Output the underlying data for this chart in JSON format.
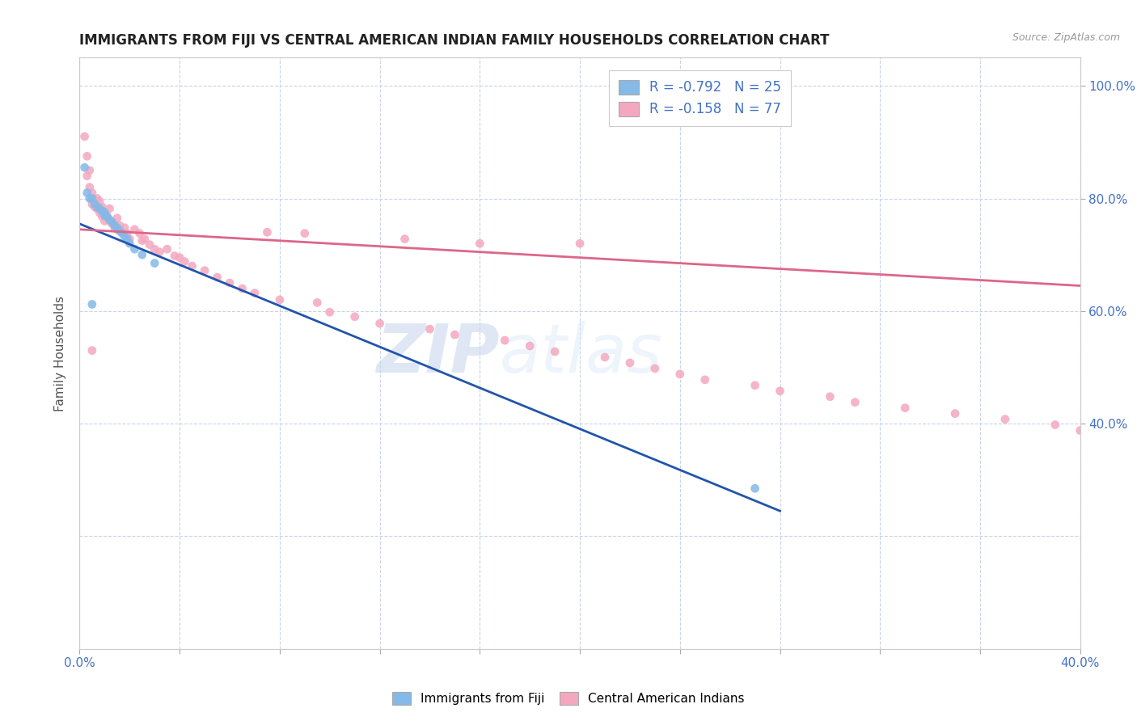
{
  "title": "IMMIGRANTS FROM FIJI VS CENTRAL AMERICAN INDIAN FAMILY HOUSEHOLDS CORRELATION CHART",
  "source": "Source: ZipAtlas.com",
  "ylabel": "Family Households",
  "xlim": [
    0.0,
    0.4
  ],
  "ylim": [
    0.0,
    1.05
  ],
  "fiji_color": "#85b9e8",
  "fiji_line_color": "#2255aa",
  "ca_indian_color": "#f4a8c0",
  "ca_indian_line_color": "#dd6688",
  "R_fiji": -0.792,
  "N_fiji": 25,
  "R_ca": -0.158,
  "N_ca": 77,
  "watermark_text": "ZIP",
  "watermark_text2": "atlas",
  "background_color": "#ffffff",
  "grid_color": "#c8d4e8",
  "fiji_line_x": [
    0.0,
    0.28
  ],
  "fiji_line_y": [
    0.755,
    0.245
  ],
  "ca_line_x": [
    0.0,
    0.4
  ],
  "ca_line_y": [
    0.745,
    0.645
  ],
  "fiji_x": [
    0.002,
    0.003,
    0.004,
    0.005,
    0.006,
    0.007,
    0.008,
    0.009,
    0.01,
    0.01,
    0.011,
    0.012,
    0.013,
    0.014,
    0.015,
    0.016,
    0.017,
    0.018,
    0.019,
    0.02,
    0.022,
    0.025,
    0.03,
    0.005,
    0.27
  ],
  "fiji_y": [
    0.855,
    0.81,
    0.8,
    0.8,
    0.79,
    0.785,
    0.782,
    0.778,
    0.775,
    0.77,
    0.768,
    0.762,
    0.758,
    0.752,
    0.748,
    0.742,
    0.738,
    0.732,
    0.728,
    0.72,
    0.71,
    0.7,
    0.685,
    0.612,
    0.285
  ],
  "ca_x": [
    0.002,
    0.003,
    0.003,
    0.004,
    0.004,
    0.005,
    0.005,
    0.005,
    0.006,
    0.006,
    0.007,
    0.007,
    0.008,
    0.008,
    0.009,
    0.009,
    0.01,
    0.01,
    0.011,
    0.012,
    0.012,
    0.013,
    0.014,
    0.015,
    0.015,
    0.016,
    0.017,
    0.018,
    0.019,
    0.02,
    0.022,
    0.024,
    0.025,
    0.026,
    0.028,
    0.03,
    0.032,
    0.035,
    0.038,
    0.04,
    0.042,
    0.045,
    0.05,
    0.055,
    0.06,
    0.065,
    0.07,
    0.075,
    0.08,
    0.09,
    0.095,
    0.1,
    0.11,
    0.12,
    0.13,
    0.14,
    0.15,
    0.16,
    0.17,
    0.18,
    0.19,
    0.2,
    0.21,
    0.22,
    0.23,
    0.24,
    0.25,
    0.27,
    0.28,
    0.3,
    0.31,
    0.33,
    0.35,
    0.37,
    0.39,
    0.4,
    0.005
  ],
  "ca_y": [
    0.91,
    0.875,
    0.84,
    0.85,
    0.82,
    0.81,
    0.8,
    0.79,
    0.795,
    0.785,
    0.8,
    0.782,
    0.795,
    0.775,
    0.785,
    0.768,
    0.775,
    0.76,
    0.768,
    0.782,
    0.76,
    0.755,
    0.748,
    0.765,
    0.745,
    0.752,
    0.74,
    0.748,
    0.738,
    0.728,
    0.745,
    0.738,
    0.725,
    0.728,
    0.718,
    0.71,
    0.705,
    0.71,
    0.698,
    0.695,
    0.688,
    0.68,
    0.672,
    0.66,
    0.65,
    0.64,
    0.632,
    0.74,
    0.62,
    0.738,
    0.615,
    0.598,
    0.59,
    0.578,
    0.728,
    0.568,
    0.558,
    0.72,
    0.548,
    0.538,
    0.528,
    0.72,
    0.518,
    0.508,
    0.498,
    0.488,
    0.478,
    0.468,
    0.458,
    0.448,
    0.438,
    0.428,
    0.418,
    0.408,
    0.398,
    0.388,
    0.53
  ]
}
